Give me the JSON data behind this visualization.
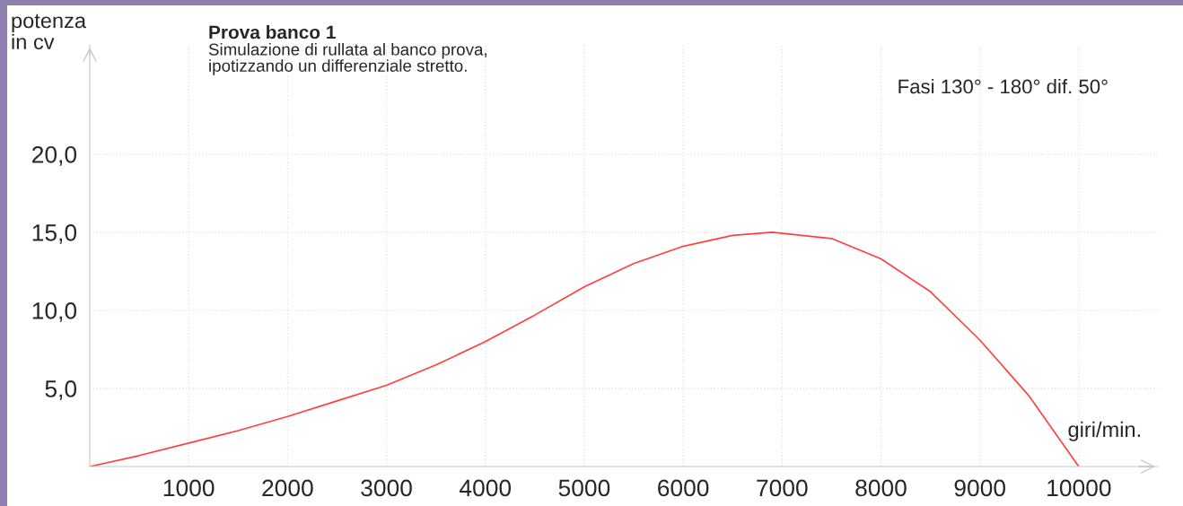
{
  "chart_data": {
    "type": "line",
    "title": "Prova banco 1",
    "subtitle": "Simulazione di rullata al banco prova,\nipotizzando un differenziale stretto.",
    "xlabel": "giri/min.",
    "ylabel": "potenza\nin cv",
    "annotations": [
      "Fasi 130° - 180° dif. 50°"
    ],
    "series": [
      {
        "color": "#ff4040",
        "x": [
          0,
          500,
          1000,
          1500,
          2000,
          2500,
          3000,
          3500,
          4000,
          4500,
          5000,
          5500,
          6000,
          6500,
          6900,
          7500,
          8000,
          8500,
          9000,
          9500,
          10000
        ],
        "values": [
          0,
          0.7,
          1.5,
          2.3,
          3.2,
          4.2,
          5.2,
          6.5,
          8.0,
          9.7,
          11.5,
          13.0,
          14.1,
          14.8,
          15.0,
          14.6,
          13.3,
          11.2,
          8.1,
          4.5,
          0
        ]
      }
    ],
    "xlim": [
      0,
      10800
    ],
    "xticks": [
      1000,
      2000,
      3000,
      4000,
      5000,
      6000,
      7000,
      8000,
      9000,
      10000
    ],
    "ylim": [
      0,
      27
    ],
    "yticks": [
      {
        "value": 5,
        "label": "5,0"
      },
      {
        "value": 10,
        "label": "10,0"
      },
      {
        "value": 15,
        "label": "15,0"
      },
      {
        "value": 20,
        "label": "20,0"
      }
    ],
    "grid": true,
    "marker": "none",
    "line_style": "solid"
  }
}
